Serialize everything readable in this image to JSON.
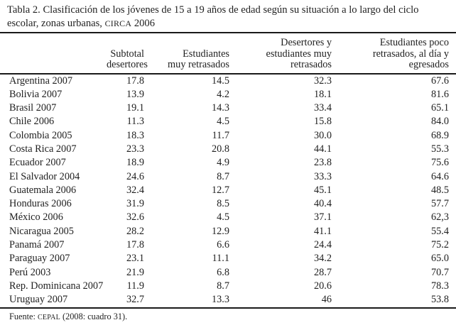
{
  "title": {
    "line1": "Tabla 2. Clasificación de los jóvenes de 15 a 19 años de edad según su situación a lo largo del ciclo",
    "line2_pre": "escolar, zonas urbanas, ",
    "line2_smallcaps": "CIRCA",
    "line2_post": " 2006"
  },
  "table": {
    "headers": [
      [],
      [
        "Subtotal",
        "desertores"
      ],
      [
        "Estudiantes",
        "muy retrasados"
      ],
      [
        "Desertores y",
        "estudiantes muy",
        "retrasados"
      ],
      [
        "Estudiantes poco",
        "retrasados, al día y",
        "egresados"
      ]
    ],
    "rows": [
      [
        "Argentina 2007",
        "17.8",
        "14.5",
        "32.3",
        "67.6"
      ],
      [
        "Bolivia 2007",
        "13.9",
        "4.2",
        "18.1",
        "81.6"
      ],
      [
        "Brasil 2007",
        "19.1",
        "14.3",
        "33.4",
        "65.1"
      ],
      [
        "Chile 2006",
        "11.3",
        "4.5",
        "15.8",
        "84.0"
      ],
      [
        "Colombia 2005",
        "18.3",
        "11.7",
        "30.0",
        "68.9"
      ],
      [
        "Costa Rica 2007",
        "23.3",
        "20.8",
        "44.1",
        "55.3"
      ],
      [
        "Ecuador 2007",
        "18.9",
        "4.9",
        "23.8",
        "75.6"
      ],
      [
        "El Salvador 2004",
        "24.6",
        "8.7",
        "33.3",
        "64.6"
      ],
      [
        "Guatemala 2006",
        "32.4",
        "12.7",
        "45.1",
        "48.5"
      ],
      [
        "Honduras 2006",
        "31.9",
        "8.5",
        "40.4",
        "57.7"
      ],
      [
        "México 2006",
        "32.6",
        "4.5",
        "37.1",
        "62,3"
      ],
      [
        "Nicaragua 2005",
        "28.2",
        "12.9",
        "41.1",
        "55.4"
      ],
      [
        "Panamá 2007",
        "17.8",
        "6.6",
        "24.4",
        "75.2"
      ],
      [
        "Paraguay 2007",
        "23.1",
        "11.1",
        "34.2",
        "65.0"
      ],
      [
        "Perú 2003",
        "21.9",
        "6.8",
        "28.7",
        "70.7"
      ],
      [
        "Rep. Dominicana 2007",
        "11.9",
        "8.7",
        "20.6",
        "78.3"
      ],
      [
        "Uruguay 2007",
        "32.7",
        "13.3",
        "46",
        "53.8"
      ]
    ]
  },
  "source": {
    "pre": "Fuente: ",
    "smallcaps": "CEPAL",
    "post": " (2008: cuadro 31)."
  },
  "colors": {
    "text": "#1f1f1f",
    "rule": "#1a1a1a",
    "background": "#ffffff"
  }
}
